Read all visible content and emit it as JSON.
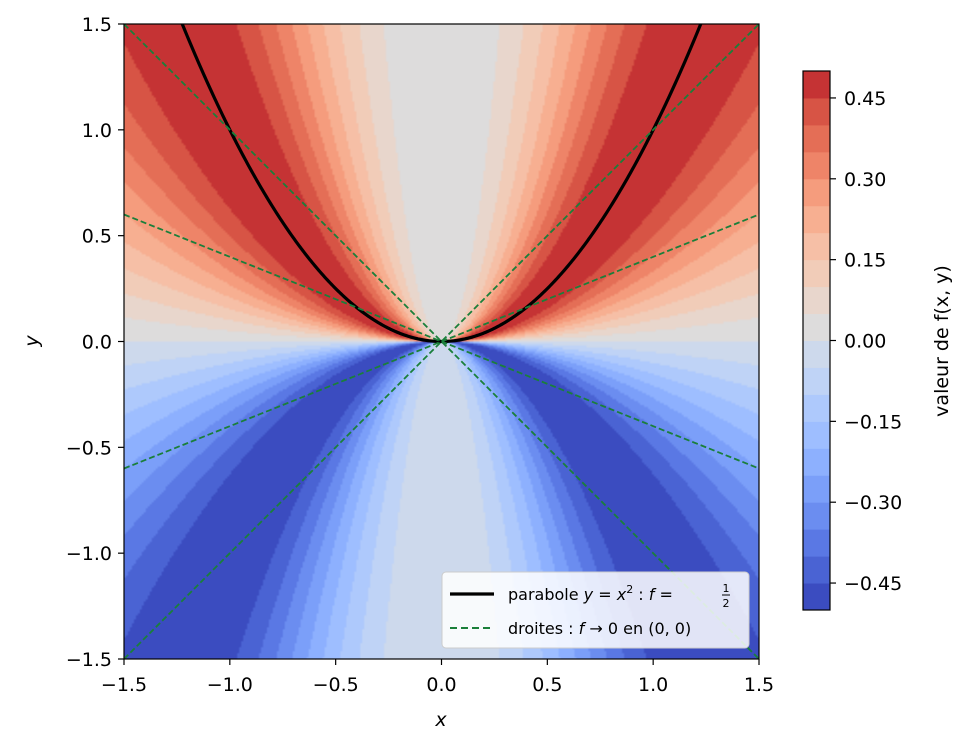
{
  "chart_data": {
    "type": "heatmap",
    "function": "f(x,y) = x^2 y / (x^4 + y^2)",
    "xlabel": "x",
    "ylabel": "y",
    "xlim": [
      -1.5,
      1.5
    ],
    "ylim": [
      -1.5,
      1.5
    ],
    "x_ticks": [
      "−1.5",
      "−1.0",
      "−0.5",
      "0.0",
      "0.5",
      "1.0",
      "1.5"
    ],
    "x_tick_values": [
      -1.5,
      -1.0,
      -0.5,
      0.0,
      0.5,
      1.0,
      1.5
    ],
    "y_ticks": [
      "−1.5",
      "−1.0",
      "−0.5",
      "0.0",
      "0.5",
      "1.0",
      "1.5"
    ],
    "y_tick_values": [
      -1.5,
      -1.0,
      -0.5,
      0.0,
      0.5,
      1.0,
      1.5
    ],
    "grid": false,
    "colormap": "coolwarm",
    "levels": [
      -0.5,
      -0.45,
      -0.4,
      -0.35,
      -0.3,
      -0.25,
      -0.2,
      -0.15,
      -0.1,
      -0.05,
      0.0,
      0.05,
      0.1,
      0.15,
      0.2,
      0.25,
      0.3,
      0.35,
      0.4,
      0.45,
      0.5
    ],
    "colors": [
      "#3b4cc0",
      "#4a63d3",
      "#5a78e4",
      "#6b8df0",
      "#7b9ff9",
      "#8db0fe",
      "#9ebeff",
      "#aec9fc",
      "#bfd3f6",
      "#cdd9ec",
      "#dddcdc",
      "#e8d6cc",
      "#f1ccb8",
      "#f6bfa6",
      "#f7af91",
      "#f59c7d",
      "#ee8468",
      "#e46e56",
      "#d75445",
      "#c53334",
      "#b40426"
    ],
    "colorbar": {
      "label": "valeur de f(x, y)",
      "ticks": [
        "−0.45",
        "−0.30",
        "−0.15",
        "0.00",
        "0.15",
        "0.30",
        "0.45"
      ],
      "tick_values": [
        -0.45,
        -0.3,
        -0.15,
        0.0,
        0.15,
        0.3,
        0.45
      ],
      "range": [
        -0.5,
        0.5
      ]
    },
    "series": [
      {
        "name": "parabole y = x² : f = 1/2",
        "kind": "parabola",
        "equation": "y = x^2",
        "color": "#000000",
        "style": "solid"
      },
      {
        "name": "droites : f → 0 en (0, 0)",
        "kind": "lines",
        "slopes": [
          1,
          -1,
          0.4,
          -0.4
        ],
        "color": "#1a7f3a",
        "style": "dashed"
      }
    ],
    "legend": {
      "placement": "bottom-right",
      "entries": [
        {
          "lead": "parabole ",
          "math": "y = x",
          "sup": "2",
          "mid": " : ",
          "f": "f",
          "eq": " = ",
          "num": "1",
          "den": "2"
        },
        {
          "lead": "droites : ",
          "f": "f",
          "rest": " → 0 en (0, 0)"
        }
      ]
    }
  }
}
